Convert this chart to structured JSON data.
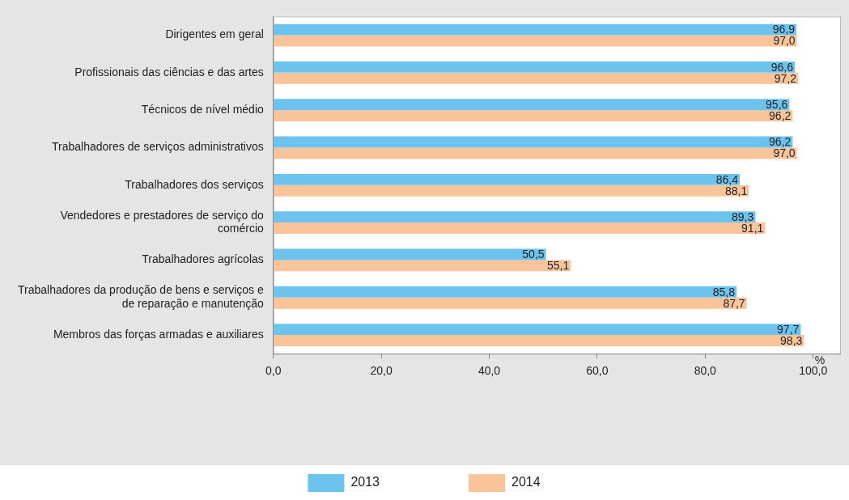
{
  "chart_data": {
    "type": "bar",
    "orientation": "horizontal",
    "xlabel": "%",
    "categories": [
      "Dirigentes em geral",
      "Profissionais das ciências e das artes",
      "Técnicos de nível médio",
      "Trabalhadores de serviços administrativos",
      "Trabalhadores dos serviços",
      "Vendedores e prestadores de serviço do comércio",
      "Trabalhadores agrícolas",
      "Trabalhadores da produção de bens e serviços e de reparação e manutenção",
      "Membros das forças armadas e auxiliares"
    ],
    "series": [
      {
        "name": "2013",
        "color": "#6cc4ee",
        "values": [
          96.9,
          96.6,
          95.6,
          96.2,
          86.4,
          89.3,
          50.5,
          85.8,
          97.7
        ],
        "value_labels": [
          "96,9",
          "96,6",
          "95,6",
          "96,2",
          "86,4",
          "89,3",
          "50,5",
          "85,8",
          "97,7"
        ]
      },
      {
        "name": "2014",
        "color": "#f9c499",
        "values": [
          97.0,
          97.2,
          96.2,
          97.0,
          88.1,
          91.1,
          55.1,
          87.7,
          98.3
        ],
        "value_labels": [
          "97,0",
          "97,2",
          "96,2",
          "97,0",
          "88,1",
          "91,1",
          "55,1",
          "87,7",
          "98,3"
        ]
      }
    ],
    "xlim": [
      0,
      105
    ],
    "xticks": [
      {
        "value": 0,
        "label": "0,0"
      },
      {
        "value": 20,
        "label": "20,0"
      },
      {
        "value": 40,
        "label": "40,0"
      },
      {
        "value": 60,
        "label": "60,0"
      },
      {
        "value": 80,
        "label": "80,0"
      },
      {
        "value": 100,
        "label": "100,0"
      }
    ],
    "grid": false,
    "legend": "bottom"
  }
}
